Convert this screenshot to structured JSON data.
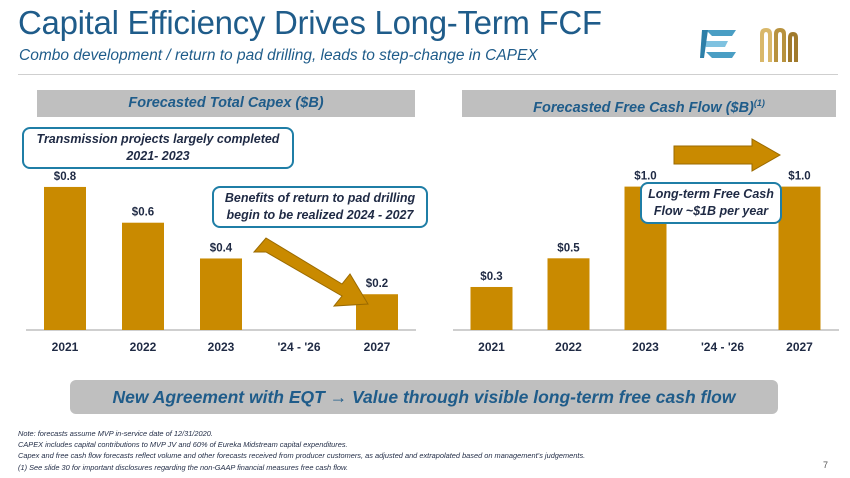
{
  "header": {
    "title": "Capital Efficiency Drives Long-Term FCF",
    "subtitle": "Combo development / return to pad drilling, leads to step-change in CAPEX"
  },
  "colors": {
    "bar": "#c98a00",
    "arrow": "#c98a00",
    "accent": "#1f5c8a",
    "callout_border": "#1f7ea6"
  },
  "chart_data": [
    {
      "type": "bar",
      "title": "Forecasted Total Capex ($B)",
      "categories": [
        "2021",
        "2022",
        "2023",
        "'24 - '26",
        "2027"
      ],
      "values": [
        0.8,
        0.6,
        0.4,
        null,
        0.2
      ],
      "labels": [
        "$0.8",
        "$0.6",
        "$0.4",
        "",
        "$0.2"
      ],
      "ylim": [
        0,
        0.85
      ],
      "annotations": {
        "top_callout": "Transmission projects largely completed 2021- 2023",
        "mid_callout": "Benefits of return to pad drilling begin to be realized 2024 - 2027"
      }
    },
    {
      "type": "bar",
      "title": "Forecasted Free Cash Flow ($B)",
      "title_sup": "(1)",
      "categories": [
        "2021",
        "2022",
        "2023",
        "'24 - '26",
        "2027"
      ],
      "values": [
        0.3,
        0.5,
        1.0,
        null,
        1.0
      ],
      "labels": [
        "$0.3",
        "$0.5",
        "$1.0",
        "",
        "$1.0"
      ],
      "ylim": [
        0,
        1.06
      ],
      "annotations": {
        "callout": "Long-term Free Cash Flow ~$1B per year"
      }
    }
  ],
  "banner": "New Agreement with EQT → Value through visible long-term free cash flow",
  "notes": [
    "Note: forecasts assume MVP in-service date of 12/31/2020.",
    "CAPEX includes capital contributions to MVP JV and 60% of Eureka Midstream capital expenditures.",
    "Capex and free cash flow forecasts reflect volume and other forecasts received from producer customers, as adjusted and extrapolated based on management’s judgements.",
    "(1) See slide 30 for important disclosures regarding the non-GAAP financial measures free cash flow."
  ],
  "page_number": "7"
}
